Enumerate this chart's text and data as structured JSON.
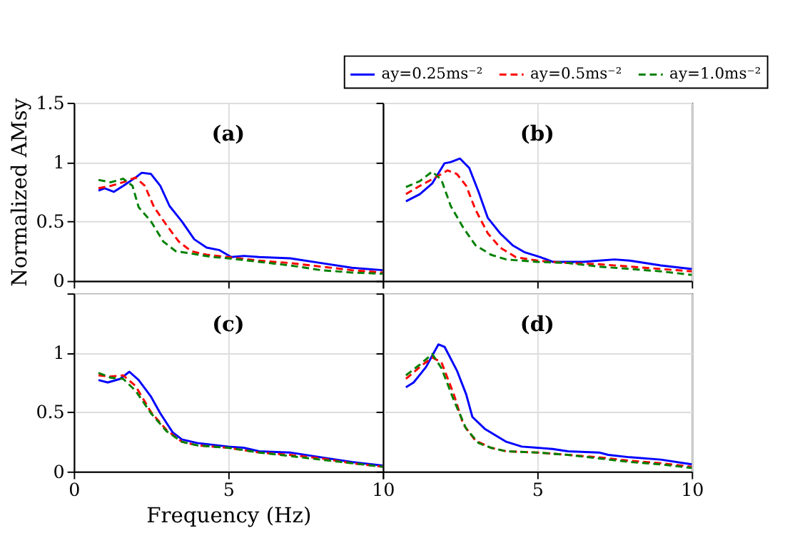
{
  "chart_data": [
    {
      "type": "line",
      "annotations": [
        "(a)"
      ],
      "ylabel": "Normalized AMsy",
      "xlim": [
        0,
        10
      ],
      "ylim": [
        0,
        1.5
      ],
      "xticks": [
        0,
        5,
        10
      ],
      "yticks": [
        0,
        0.5,
        1,
        1.5
      ],
      "grid": true,
      "legend": false,
      "tick_labels": "y",
      "series": [
        {
          "color": "#0000ff",
          "line_style": "solid",
          "x": [
            0.8,
            1.0,
            1.3,
            1.6,
            2.0,
            2.2,
            2.5,
            2.8,
            3.1,
            3.5,
            3.9,
            4.3,
            4.7,
            5.1,
            5.5,
            6,
            7,
            8,
            9,
            10
          ],
          "values": [
            0.76,
            0.78,
            0.75,
            0.8,
            0.87,
            0.91,
            0.9,
            0.8,
            0.63,
            0.5,
            0.35,
            0.28,
            0.26,
            0.2,
            0.21,
            0.2,
            0.19,
            0.15,
            0.11,
            0.09
          ]
        },
        {
          "color": "#ff0000",
          "line_style": "dashed",
          "x": [
            0.8,
            1.2,
            1.6,
            2.0,
            2.3,
            2.6,
            3,
            3.4,
            3.8,
            4.3,
            5,
            6,
            7,
            8,
            9,
            10
          ],
          "values": [
            0.78,
            0.8,
            0.83,
            0.87,
            0.8,
            0.62,
            0.47,
            0.33,
            0.25,
            0.22,
            0.2,
            0.17,
            0.15,
            0.12,
            0.09,
            0.07
          ]
        },
        {
          "color": "#008000",
          "line_style": "dashed",
          "x": [
            0.8,
            1.2,
            1.6,
            1.9,
            2.1,
            2.5,
            2.9,
            3.3,
            3.8,
            4.5,
            5,
            6,
            7,
            8,
            9,
            10
          ],
          "values": [
            0.85,
            0.83,
            0.86,
            0.8,
            0.62,
            0.5,
            0.33,
            0.25,
            0.23,
            0.2,
            0.19,
            0.16,
            0.13,
            0.09,
            0.07,
            0.06
          ]
        }
      ]
    },
    {
      "type": "line",
      "annotations": [
        "(b)"
      ],
      "xlim": [
        0,
        10
      ],
      "ylim": [
        0,
        1.5
      ],
      "xticks": [
        0,
        5,
        10
      ],
      "yticks": [
        0,
        0.5,
        1,
        1.5
      ],
      "grid": true,
      "legend": "top right",
      "tick_labels": false,
      "series": [
        {
          "name": "ay=0.25ms⁻²",
          "color": "#0000ff",
          "line_style": "solid",
          "x": [
            0.75,
            1.2,
            1.6,
            2.0,
            2.2,
            2.5,
            2.8,
            3.1,
            3.4,
            3.8,
            4.2,
            4.6,
            5.1,
            5.5,
            6.0,
            6.5,
            7.0,
            7.5,
            8,
            9,
            10
          ],
          "values": [
            0.67,
            0.73,
            0.82,
            0.99,
            1.0,
            1.03,
            0.95,
            0.75,
            0.53,
            0.4,
            0.3,
            0.24,
            0.2,
            0.16,
            0.16,
            0.16,
            0.17,
            0.18,
            0.17,
            0.13,
            0.1
          ]
        },
        {
          "name": "ay=0.5ms⁻²",
          "color": "#ff0000",
          "line_style": "dashed",
          "x": [
            0.75,
            1.2,
            1.7,
            2.1,
            2.4,
            2.7,
            3.0,
            3.4,
            3.8,
            4.3,
            5,
            6,
            7,
            8,
            9,
            10
          ],
          "values": [
            0.73,
            0.8,
            0.87,
            0.93,
            0.9,
            0.8,
            0.6,
            0.4,
            0.28,
            0.2,
            0.17,
            0.15,
            0.14,
            0.12,
            0.1,
            0.08
          ]
        },
        {
          "name": "ay=1.0ms⁻²",
          "color": "#008000",
          "line_style": "dashed",
          "x": [
            0.75,
            1.2,
            1.6,
            1.9,
            2.2,
            2.6,
            3.0,
            3.5,
            4,
            5,
            6,
            7,
            8,
            9,
            10
          ],
          "values": [
            0.79,
            0.84,
            0.92,
            0.85,
            0.63,
            0.45,
            0.3,
            0.22,
            0.18,
            0.16,
            0.15,
            0.12,
            0.1,
            0.08,
            0.05
          ]
        }
      ]
    },
    {
      "type": "line",
      "annotations": [
        "(c)"
      ],
      "xlabel": "Frequency (Hz)",
      "xlim": [
        0,
        10
      ],
      "ylim": [
        0,
        1.5
      ],
      "xticks": [
        0,
        5,
        10
      ],
      "yticks": [
        0,
        0.5,
        1,
        {
          "value": 1.5,
          "label": null
        }
      ],
      "grid": true,
      "legend": false,
      "series": [
        {
          "color": "#0000ff",
          "line_style": "solid",
          "x": [
            0.8,
            1.1,
            1.5,
            1.8,
            2.1,
            2.5,
            2.8,
            3.2,
            3.5,
            4,
            5,
            5.5,
            6,
            7,
            8,
            9,
            10
          ],
          "values": [
            0.77,
            0.75,
            0.78,
            0.84,
            0.77,
            0.63,
            0.49,
            0.33,
            0.27,
            0.24,
            0.21,
            0.2,
            0.17,
            0.16,
            0.12,
            0.08,
            0.05
          ]
        },
        {
          "color": "#ff0000",
          "line_style": "dashed",
          "x": [
            0.8,
            1.2,
            1.6,
            2.0,
            2.5,
            3,
            3.5,
            4,
            5,
            6,
            7,
            8,
            9,
            10
          ],
          "values": [
            0.81,
            0.8,
            0.81,
            0.72,
            0.5,
            0.35,
            0.25,
            0.22,
            0.2,
            0.16,
            0.14,
            0.11,
            0.07,
            0.04
          ]
        },
        {
          "color": "#008000",
          "line_style": "dashed",
          "x": [
            0.8,
            1.2,
            1.6,
            2.0,
            2.5,
            3,
            3.5,
            4,
            5,
            6,
            7,
            8,
            9,
            10
          ],
          "values": [
            0.83,
            0.79,
            0.78,
            0.68,
            0.49,
            0.34,
            0.25,
            0.22,
            0.2,
            0.16,
            0.13,
            0.1,
            0.07,
            0.04
          ]
        }
      ]
    },
    {
      "type": "line",
      "annotations": [
        "(d)"
      ],
      "xlim": [
        0,
        10
      ],
      "ylim": [
        0,
        1.5
      ],
      "xticks": [
        {
          "value": 0,
          "label": null
        },
        5,
        10
      ],
      "yticks": [
        0,
        0.5,
        1,
        1.5
      ],
      "grid": true,
      "legend": false,
      "tick_labels": "x",
      "series": [
        {
          "color": "#0000ff",
          "line_style": "solid",
          "x": [
            0.75,
            1.0,
            1.4,
            1.8,
            2.0,
            2.4,
            2.7,
            2.9,
            3.3,
            4,
            4.5,
            5,
            5.5,
            6,
            7,
            7.3,
            8,
            9,
            10
          ],
          "values": [
            0.71,
            0.75,
            0.88,
            1.07,
            1.05,
            0.85,
            0.65,
            0.46,
            0.36,
            0.25,
            0.21,
            0.2,
            0.19,
            0.17,
            0.16,
            0.14,
            0.12,
            0.1,
            0.06
          ]
        },
        {
          "color": "#ff0000",
          "line_style": "dashed",
          "x": [
            0.75,
            1.2,
            1.6,
            1.9,
            2.3,
            2.6,
            3,
            3.5,
            4,
            5,
            6,
            7,
            8,
            9,
            10
          ],
          "values": [
            0.78,
            0.88,
            0.96,
            0.92,
            0.65,
            0.4,
            0.26,
            0.2,
            0.17,
            0.16,
            0.14,
            0.12,
            0.09,
            0.07,
            0.04
          ]
        },
        {
          "color": "#008000",
          "line_style": "dashed",
          "x": [
            0.75,
            1.2,
            1.6,
            1.9,
            2.3,
            2.7,
            3.1,
            3.5,
            4,
            5,
            6,
            7,
            8,
            9,
            10
          ],
          "values": [
            0.81,
            0.9,
            0.99,
            0.87,
            0.6,
            0.36,
            0.24,
            0.2,
            0.17,
            0.16,
            0.14,
            0.11,
            0.08,
            0.06,
            0.03
          ]
        }
      ]
    }
  ]
}
